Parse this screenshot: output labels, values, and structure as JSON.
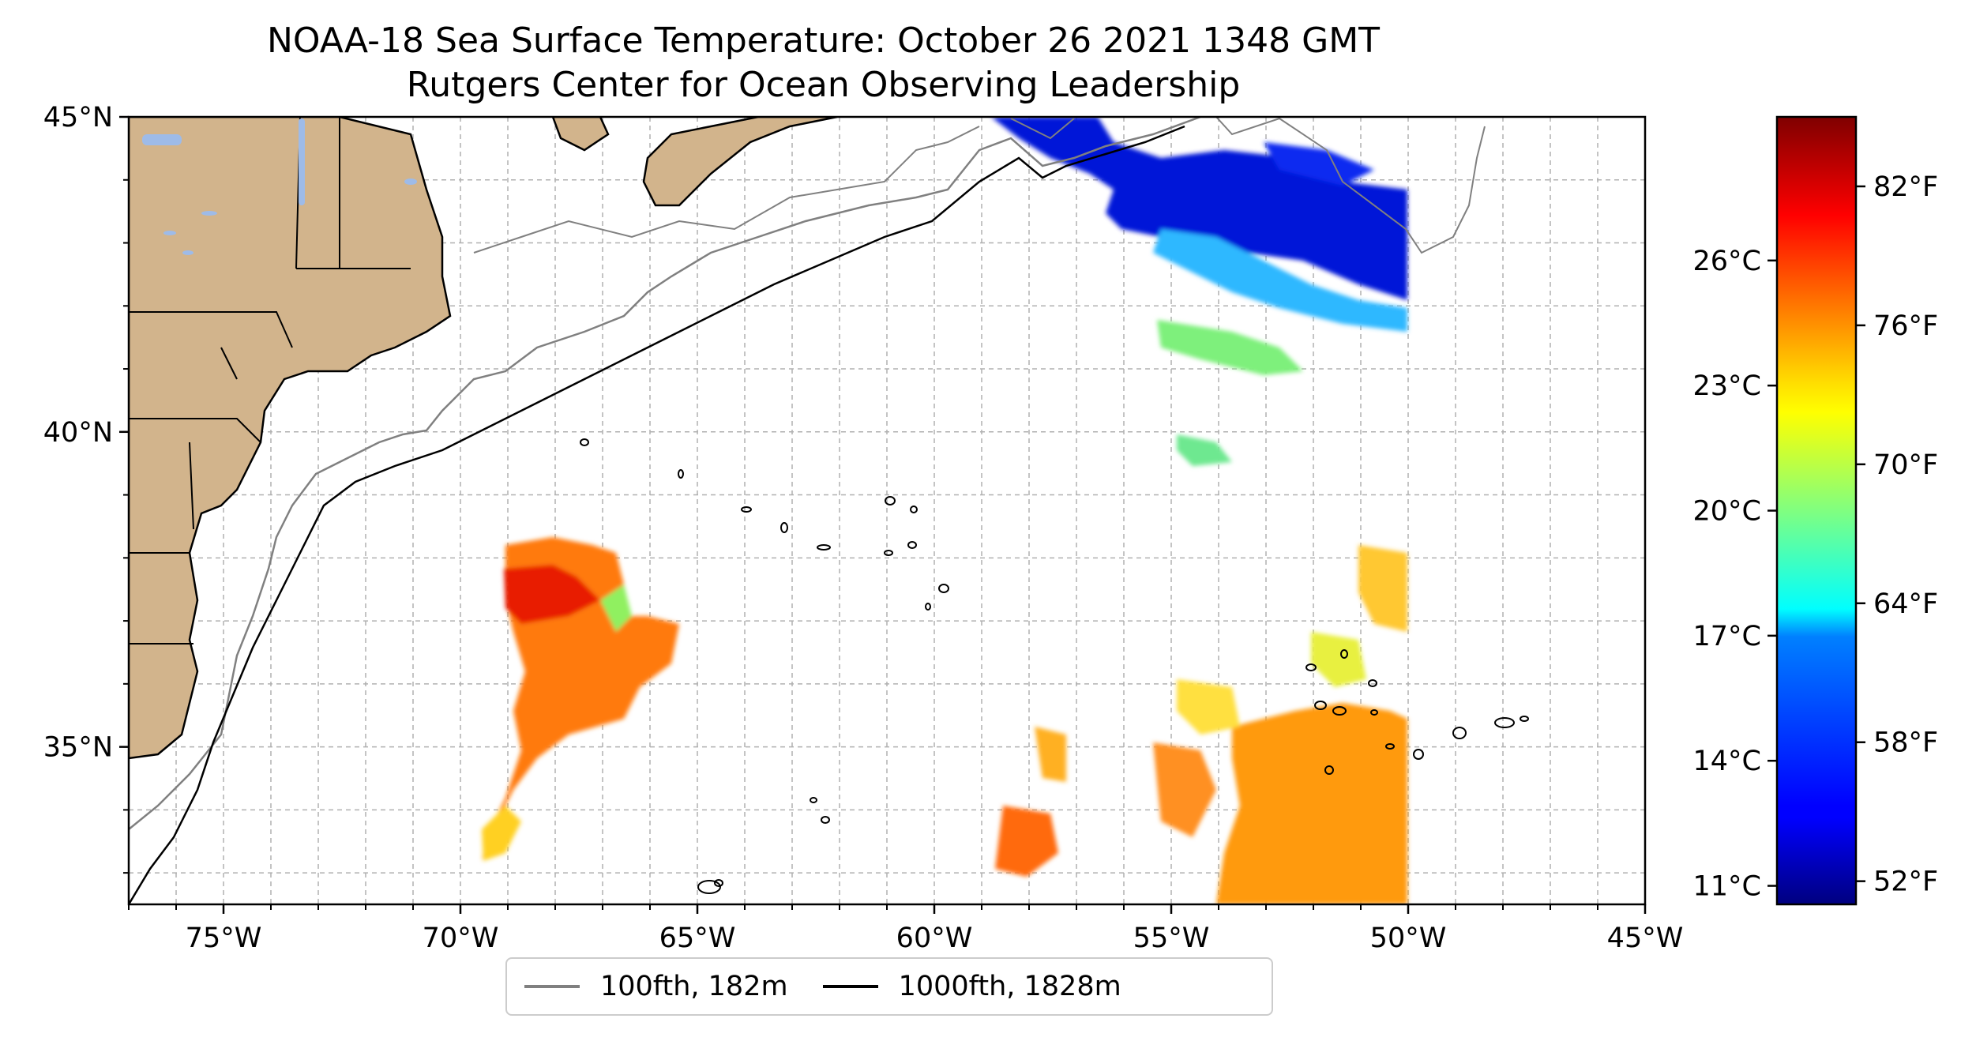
{
  "title": {
    "line1": "NOAA-18 Sea Surface Temperature: October 26 2021 1348 GMT",
    "line2": "Rutgers Center for Ocean Observing Leadership"
  },
  "map": {
    "extent": {
      "lon": [
        -77,
        -45
      ],
      "lat": [
        32.5,
        45
      ]
    },
    "lon_ticks": [
      {
        "value": -75,
        "label": "75°W"
      },
      {
        "value": -70,
        "label": "70°W"
      },
      {
        "value": -65,
        "label": "65°W"
      },
      {
        "value": -60,
        "label": "60°W"
      },
      {
        "value": -55,
        "label": "55°W"
      },
      {
        "value": -50,
        "label": "50°W"
      },
      {
        "value": -45,
        "label": "45°W"
      }
    ],
    "lat_ticks": [
      {
        "value": 45,
        "label": "45°N"
      },
      {
        "value": 40,
        "label": "40°N"
      },
      {
        "value": 35,
        "label": "35°N"
      }
    ],
    "gridlines": true,
    "land_color": "#D2B48C",
    "lake_color": "#9EBBE8"
  },
  "colorbar": {
    "cmap": "jet",
    "range_f": [
      51,
      85
    ],
    "fahrenheit_ticks": [
      {
        "value": 52,
        "label": "52°F"
      },
      {
        "value": 58,
        "label": "58°F"
      },
      {
        "value": 64,
        "label": "64°F"
      },
      {
        "value": 70,
        "label": "70°F"
      },
      {
        "value": 76,
        "label": "76°F"
      },
      {
        "value": 82,
        "label": "82°F"
      }
    ],
    "celsius_ticks": [
      {
        "value": 11,
        "label": "11°C"
      },
      {
        "value": 14,
        "label": "14°C"
      },
      {
        "value": 17,
        "label": "17°C"
      },
      {
        "value": 20,
        "label": "20°C"
      },
      {
        "value": 23,
        "label": "23°C"
      },
      {
        "value": 26,
        "label": "26°C"
      }
    ]
  },
  "legend": {
    "item1": "100fth, 182m",
    "item2": "1000fth, 1828m",
    "color1": "#808080",
    "color2": "#000000"
  }
}
